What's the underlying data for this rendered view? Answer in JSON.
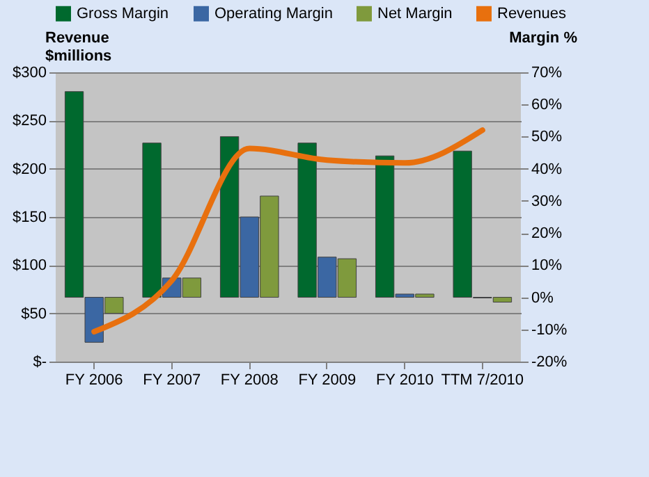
{
  "chart_data": {
    "type": "bar",
    "ylabel": "Revenue\n$millions",
    "y2label": "Margin %",
    "categories": [
      "FY 2006",
      "FY 2007",
      "FY 2008",
      "FY 2009",
      "FY 2010",
      "TTM 7/2010"
    ],
    "series": [
      {
        "name": "Gross Margin",
        "color": "#00692e",
        "axis": "y2",
        "values": [
          64,
          48,
          50,
          48,
          44,
          45.5
        ]
      },
      {
        "name": "Operating Margin",
        "color": "#3b67a3",
        "axis": "y2",
        "values": [
          -14,
          6,
          25,
          12.5,
          1,
          -0.2
        ]
      },
      {
        "name": "Net Margin",
        "color": "#7f9a3d",
        "axis": "y2",
        "values": [
          -5,
          6,
          31.5,
          12,
          1,
          -1.5
        ]
      },
      {
        "name": "Revenues",
        "type": "line",
        "color": "#e8700e",
        "axis": "y",
        "values": [
          31,
          84,
          221,
          209,
          206,
          240
        ]
      }
    ],
    "ylim": [
      0,
      300
    ],
    "yticks": [
      {
        "value": 0,
        "label": "$-"
      },
      {
        "value": 50,
        "label": "$50"
      },
      {
        "value": 100,
        "label": "$100"
      },
      {
        "value": 150,
        "label": "$150"
      },
      {
        "value": 200,
        "label": "$200"
      },
      {
        "value": 250,
        "label": "$250"
      },
      {
        "value": 300,
        "label": "$300"
      }
    ],
    "y2lim": [
      -20,
      70
    ],
    "y2ticks": [
      {
        "value": -20,
        "label": "-20%"
      },
      {
        "value": -10,
        "label": "-10%"
      },
      {
        "value": 0,
        "label": "0%"
      },
      {
        "value": 10,
        "label": "10%"
      },
      {
        "value": 20,
        "label": "20%"
      },
      {
        "value": 30,
        "label": "30%"
      },
      {
        "value": 40,
        "label": "40%"
      },
      {
        "value": 50,
        "label": "50%"
      },
      {
        "value": 60,
        "label": "60%"
      },
      {
        "value": 70,
        "label": "70%"
      }
    ],
    "grid": "y",
    "legend": "top"
  }
}
